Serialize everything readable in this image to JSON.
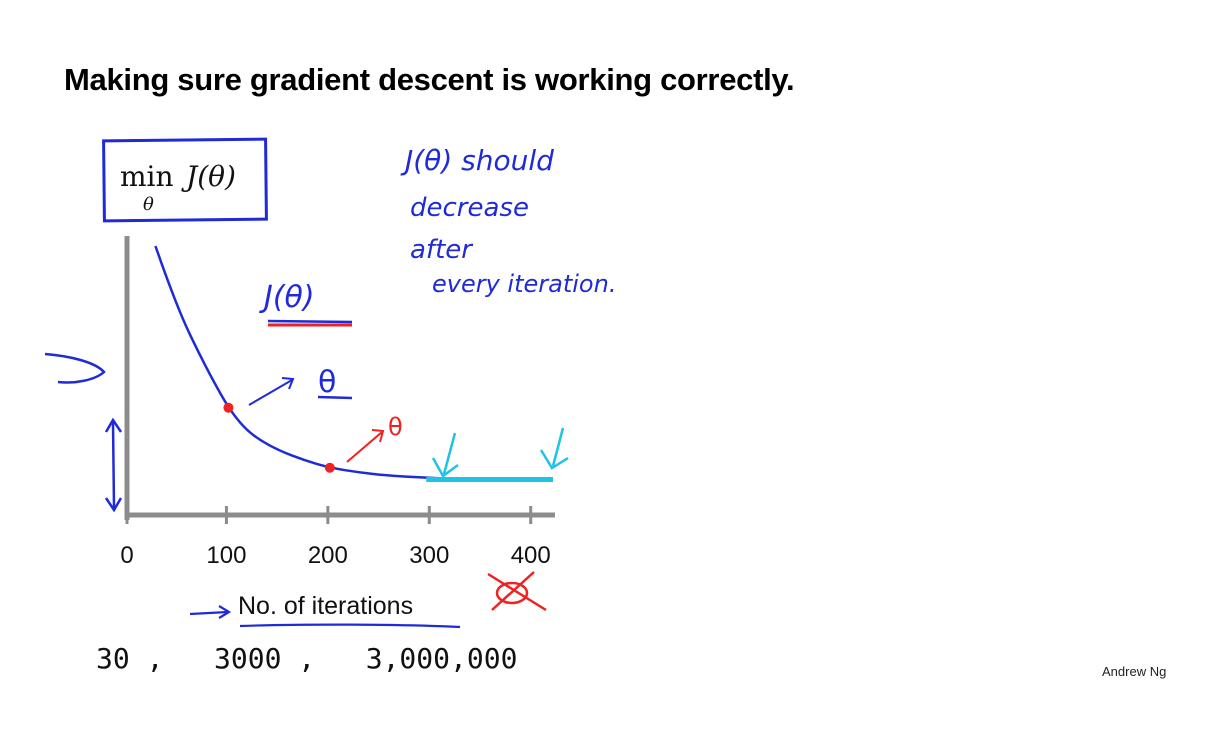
{
  "slide": {
    "title": "Making sure gradient descent is working correctly.",
    "author": "Andrew Ng"
  },
  "objective": {
    "min": "min",
    "subscript": "θ",
    "function": "J(θ)"
  },
  "annotations": {
    "note_lines": [
      "J(θ) should",
      "decrease",
      "after",
      "every  iteration."
    ],
    "curve_label": "J(θ)",
    "theta_blue": "θ",
    "theta_red": "θ",
    "iteration_examples": "30 ,   3000 ,   3,000,000"
  },
  "colors": {
    "curve": "#1f2bd6",
    "axis": "#8c8c8c",
    "marker": "#ee2222",
    "converged": "#1ec3e6",
    "ink_blue": "#1f2bd6",
    "ink_red": "#ee2222",
    "ink_black": "#111111"
  },
  "chart_data": {
    "type": "line",
    "title": "",
    "xlabel": "No. of iterations",
    "ylabel": "",
    "xlim": [
      0,
      420
    ],
    "ylim": [
      0,
      1
    ],
    "x_ticks": [
      0,
      100,
      200,
      300,
      400
    ],
    "series": [
      {
        "x": [
          28,
          40,
          55,
          70,
          85,
          100,
          115,
          130,
          150,
          175,
          200,
          230,
          260,
          290,
          320,
          360,
          400,
          418
        ],
        "y": [
          1.0,
          0.86,
          0.7,
          0.57,
          0.45,
          0.34,
          0.26,
          0.21,
          0.165,
          0.125,
          0.095,
          0.075,
          0.062,
          0.055,
          0.05,
          0.047,
          0.046,
          0.045
        ]
      }
    ],
    "highlight_points": [
      {
        "x": 100,
        "y": 0.34
      },
      {
        "x": 200,
        "y": 0.095
      }
    ],
    "converged_segment": {
      "x": [
        295,
        420
      ],
      "y": 0.047
    }
  }
}
